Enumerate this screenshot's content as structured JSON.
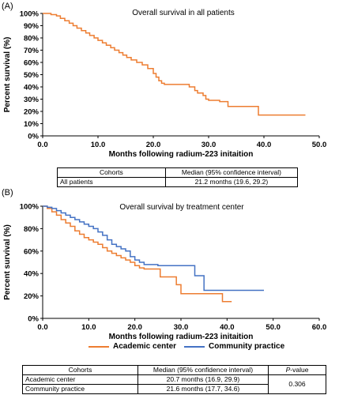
{
  "panels": {
    "a_label": "(A)",
    "b_label": "(B)"
  },
  "colors": {
    "all": "#ED7D31",
    "academic": "#ED7D31",
    "community": "#4472C4"
  },
  "chart_data": [
    {
      "type": "line",
      "title": "Overall survival in all patients",
      "xlabel": "Months following radium-223 initaition",
      "ylabel": "Percent survival (%)",
      "xlim": [
        0,
        50
      ],
      "ylim": [
        0,
        100
      ],
      "xticks": [
        "0.0",
        "10.0",
        "20.0",
        "30.0",
        "40.0",
        "50.0"
      ],
      "yticks": [
        "0%",
        "10%",
        "20%",
        "30%",
        "40%",
        "50%",
        "60%",
        "70%",
        "80%",
        "90%",
        "100%"
      ],
      "grid": false,
      "step": true,
      "series": [
        {
          "name": "All patients",
          "x": [
            0,
            1.5,
            2.5,
            3.2,
            4.0,
            4.8,
            5.5,
            6.2,
            7.0,
            7.8,
            8.5,
            9.3,
            10.0,
            10.8,
            11.5,
            12.3,
            13.0,
            13.8,
            14.5,
            15.2,
            16.0,
            17.0,
            18.0,
            19.0,
            20.0,
            20.5,
            21.0,
            21.5,
            22.0,
            26.5,
            27.5,
            28.0,
            29.0,
            29.5,
            30.0,
            32.0,
            33.5,
            39.0,
            47.5
          ],
          "y": [
            100,
            99,
            98,
            96,
            94,
            92,
            90,
            88,
            86,
            84,
            82,
            80,
            78,
            76,
            74,
            72,
            70,
            68,
            66,
            64,
            62,
            60,
            58,
            55,
            51,
            48,
            45,
            43,
            42,
            40,
            37,
            35,
            33,
            30,
            29,
            28,
            24,
            17,
            17
          ]
        }
      ],
      "table": {
        "headers": [
          "Cohorts",
          "Median (95% confidence interval)"
        ],
        "rows": [
          [
            "All patients",
            "21.2 months (19.6, 29.2)"
          ]
        ]
      }
    },
    {
      "type": "line",
      "title": "Overall survival by treatment center",
      "xlabel": "Months following radium-223 initaition",
      "ylabel": "Percent survival (%)",
      "xlim": [
        0,
        60
      ],
      "ylim": [
        0,
        100
      ],
      "xticks": [
        "0.0",
        "10.0",
        "20.0",
        "30.0",
        "40.0",
        "50.0",
        "60.0"
      ],
      "yticks": [
        "0%",
        "20%",
        "40%",
        "60%",
        "80%",
        "100%"
      ],
      "grid": false,
      "step": true,
      "series": [
        {
          "name": "Academic center",
          "x": [
            0,
            1.0,
            2.0,
            3.0,
            4.0,
            5.0,
            6.0,
            7.0,
            8.0,
            9.0,
            10.0,
            11.0,
            12.0,
            13.0,
            14.0,
            15.0,
            16.0,
            17.0,
            18.0,
            19.0,
            20.0,
            21.0,
            22.0,
            25.5,
            29.0,
            30.0,
            37.0,
            39.0,
            41.0
          ],
          "y": [
            100,
            98,
            95,
            92,
            88,
            85,
            82,
            78,
            75,
            72,
            70,
            68,
            66,
            63,
            60,
            58,
            56,
            54,
            52,
            50,
            47,
            45,
            44,
            37,
            30,
            22,
            22,
            15,
            15
          ]
        },
        {
          "name": "Community practice",
          "x": [
            0,
            1.0,
            2.0,
            3.0,
            4.0,
            5.0,
            6.0,
            7.0,
            8.0,
            9.0,
            10.0,
            11.0,
            12.0,
            13.0,
            14.0,
            15.0,
            16.0,
            17.0,
            18.0,
            19.0,
            20.0,
            21.0,
            22.0,
            25.0,
            33.0,
            35.0,
            48.0
          ],
          "y": [
            100,
            99,
            98,
            96,
            94,
            92,
            90,
            88,
            86,
            84,
            82,
            80,
            77,
            74,
            70,
            66,
            64,
            62,
            60,
            55,
            52,
            50,
            48,
            47,
            38,
            25,
            25
          ]
        }
      ],
      "table": {
        "headers": [
          "Cohorts",
          "Median (95% confidence interval)",
          "P-value"
        ],
        "rows": [
          [
            "Academic center",
            "20.7 months (16.9, 29.9)",
            "0.306"
          ],
          [
            "Community practice",
            "21.6 months (17.7, 34.6)",
            ""
          ]
        ]
      }
    }
  ]
}
